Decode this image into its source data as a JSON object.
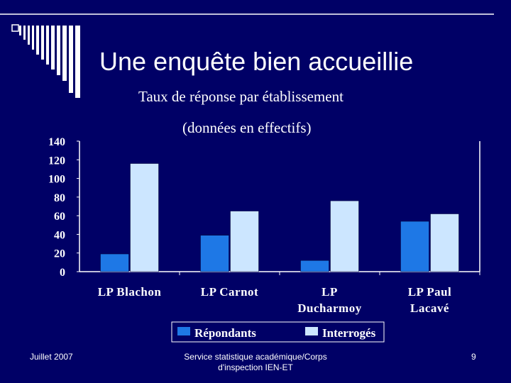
{
  "slide": {
    "title": "Une enquête bien accueillie",
    "subtitle_line1": "Taux de réponse par établissement",
    "subtitle_line2": "(données en effectifs)",
    "footer_left": "Juillet 2007",
    "footer_center": "Service statistique académique/Corps d'inspection IEN-ET",
    "page_number": "9"
  },
  "colors": {
    "background": "#000066",
    "repondants": "#1E78E6",
    "interroges": "#CCE6FF"
  },
  "chart_data": {
    "type": "bar",
    "categories": [
      [
        "LP Blachon"
      ],
      [
        "LP Carnot"
      ],
      [
        "LP",
        "Ducharmoy"
      ],
      [
        "LP Paul",
        "Lacavé"
      ]
    ],
    "series": [
      {
        "name": "Répondants",
        "values": [
          19,
          39,
          12,
          54
        ]
      },
      {
        "name": "Interrogés",
        "values": [
          116,
          65,
          76,
          62
        ]
      }
    ],
    "y_ticks": [
      "0",
      "20",
      "40",
      "60",
      "80",
      "100",
      "120",
      "140"
    ],
    "ylim": [
      0,
      140
    ],
    "legend": "bottom",
    "grid": false
  }
}
